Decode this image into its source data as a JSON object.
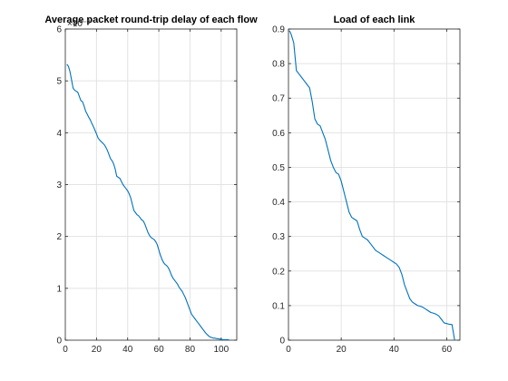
{
  "chart_data": [
    {
      "type": "line",
      "title": "Average packet round-trip delay of each flow",
      "exponent_label": "×10⁻³",
      "xlabel": "",
      "ylabel": "",
      "xlim": [
        0,
        110
      ],
      "ylim": [
        0,
        6
      ],
      "xticks": [
        0,
        20,
        40,
        60,
        80,
        100
      ],
      "yticks": [
        0,
        1,
        2,
        3,
        4,
        5,
        6
      ],
      "grid": true,
      "color": "#0072bd",
      "x": [
        1,
        2,
        3,
        4,
        5,
        6,
        7,
        8,
        9,
        10,
        11,
        12,
        13,
        14,
        15,
        16,
        17,
        18,
        19,
        20,
        21,
        22,
        23,
        24,
        25,
        26,
        27,
        28,
        29,
        30,
        31,
        32,
        33,
        34,
        35,
        36,
        37,
        38,
        39,
        40,
        41,
        42,
        43,
        44,
        45,
        46,
        47,
        48,
        49,
        50,
        51,
        52,
        53,
        54,
        55,
        56,
        57,
        58,
        59,
        60,
        61,
        62,
        63,
        64,
        65,
        66,
        67,
        68,
        69,
        70,
        71,
        72,
        73,
        74,
        75,
        76,
        77,
        78,
        79,
        80,
        81,
        82,
        83,
        84,
        85,
        86,
        87,
        88,
        89,
        90,
        91,
        92,
        93,
        94,
        95,
        96,
        97,
        98,
        99,
        100,
        101,
        102,
        103,
        104,
        105
      ],
      "values": [
        5.32,
        5.28,
        5.18,
        5.02,
        4.86,
        4.82,
        4.8,
        4.78,
        4.7,
        4.62,
        4.6,
        4.52,
        4.42,
        4.36,
        4.3,
        4.25,
        4.18,
        4.12,
        4.05,
        3.98,
        3.9,
        3.86,
        3.83,
        3.8,
        3.77,
        3.72,
        3.66,
        3.58,
        3.5,
        3.46,
        3.4,
        3.3,
        3.16,
        3.14,
        3.12,
        3.06,
        3.0,
        2.96,
        2.92,
        2.88,
        2.82,
        2.74,
        2.62,
        2.5,
        2.46,
        2.42,
        2.4,
        2.36,
        2.32,
        2.3,
        2.24,
        2.16,
        2.08,
        2.02,
        1.98,
        1.96,
        1.94,
        1.9,
        1.84,
        1.74,
        1.64,
        1.56,
        1.5,
        1.46,
        1.44,
        1.4,
        1.34,
        1.26,
        1.2,
        1.16,
        1.12,
        1.08,
        1.02,
        0.98,
        0.94,
        0.88,
        0.82,
        0.74,
        0.66,
        0.58,
        0.5,
        0.46,
        0.42,
        0.38,
        0.34,
        0.3,
        0.26,
        0.22,
        0.18,
        0.14,
        0.11,
        0.08,
        0.06,
        0.05,
        0.04,
        0.04,
        0.03,
        0.03,
        0.02,
        0.02,
        0.01,
        0.01,
        0.01,
        0.01,
        0.01
      ]
    },
    {
      "type": "line",
      "title": "Load of each link",
      "xlabel": "",
      "ylabel": "",
      "xlim": [
        0,
        65
      ],
      "ylim": [
        0,
        0.9
      ],
      "xticks": [
        0,
        20,
        40,
        60
      ],
      "yticks": [
        0,
        0.1,
        0.2,
        0.3,
        0.4,
        0.5,
        0.6,
        0.7,
        0.8,
        0.9
      ],
      "grid": true,
      "color": "#0072bd",
      "x": [
        0.4,
        1,
        2,
        3,
        4,
        5,
        6,
        7,
        8,
        9,
        10,
        11,
        12,
        13,
        14,
        15,
        16,
        17,
        18,
        19,
        20,
        21,
        22,
        23,
        24,
        25,
        26,
        27,
        28,
        29,
        30,
        31,
        32,
        33,
        34,
        35,
        36,
        37,
        38,
        39,
        40,
        41,
        42,
        43,
        44,
        45,
        46,
        47,
        48,
        49,
        50,
        51,
        52,
        53,
        54,
        55,
        56,
        57,
        58,
        59,
        60,
        61,
        62,
        63
      ],
      "values": [
        0.895,
        0.885,
        0.86,
        0.78,
        0.77,
        0.76,
        0.75,
        0.74,
        0.73,
        0.69,
        0.64,
        0.625,
        0.62,
        0.6,
        0.58,
        0.55,
        0.52,
        0.5,
        0.485,
        0.48,
        0.46,
        0.43,
        0.4,
        0.37,
        0.355,
        0.35,
        0.345,
        0.32,
        0.3,
        0.295,
        0.29,
        0.28,
        0.27,
        0.26,
        0.255,
        0.25,
        0.245,
        0.24,
        0.235,
        0.23,
        0.225,
        0.22,
        0.21,
        0.19,
        0.16,
        0.14,
        0.12,
        0.11,
        0.105,
        0.1,
        0.098,
        0.095,
        0.09,
        0.085,
        0.08,
        0.078,
        0.075,
        0.07,
        0.06,
        0.05,
        0.048,
        0.046,
        0.045,
        0.0
      ]
    }
  ]
}
